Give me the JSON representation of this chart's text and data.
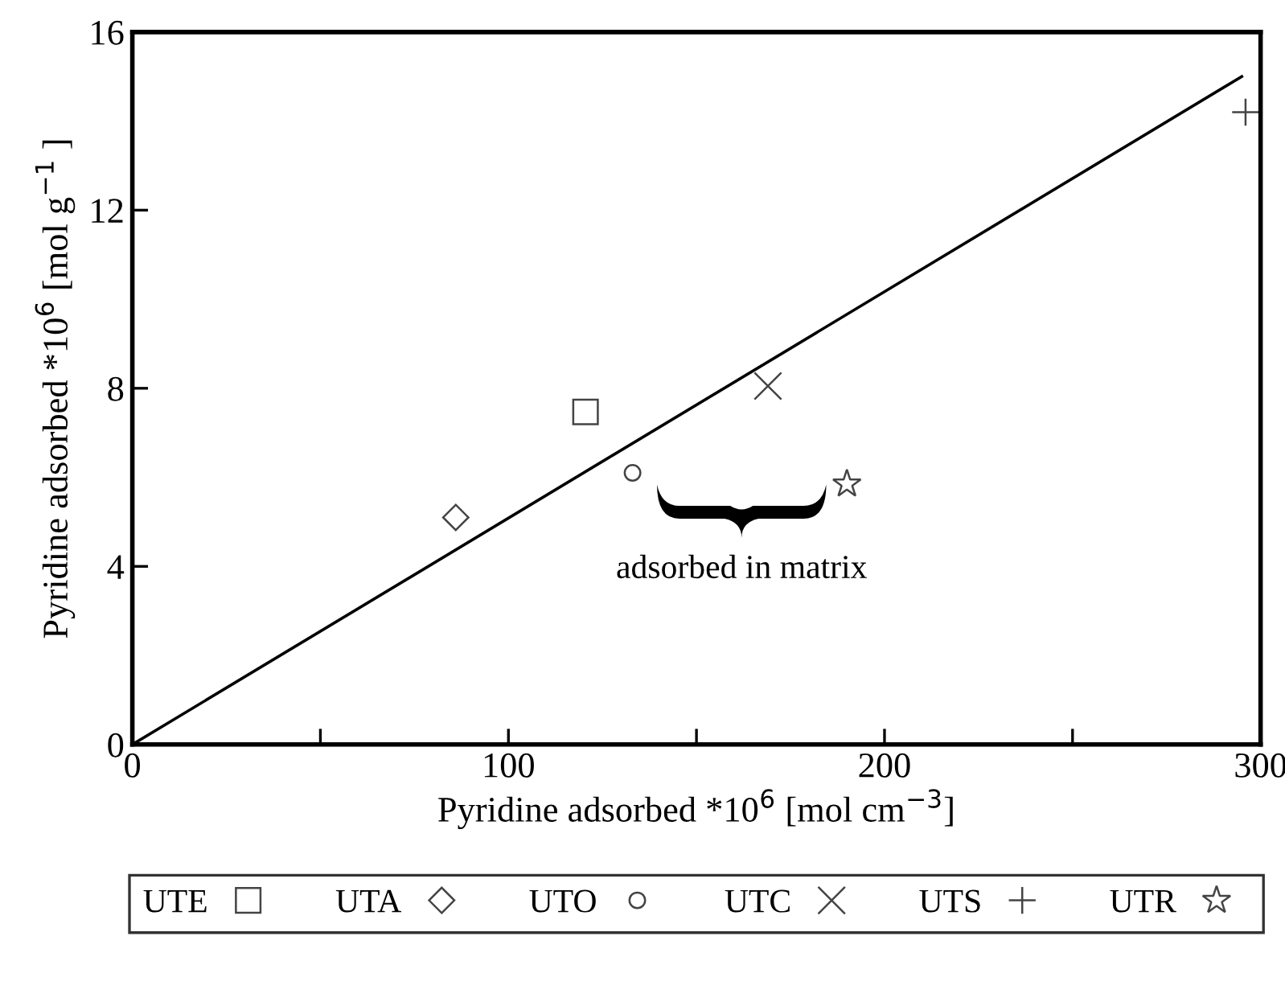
{
  "chart_data": {
    "type": "scatter",
    "xlabel": "Pyridine adsorbed *10$^{6}$ [mol cm$^{−3}$]",
    "ylabel": "Pyridine adsorbed *10$^{6}$ [mol g$^{−1}$ ]",
    "xlim": [
      0,
      300
    ],
    "ylim": [
      0,
      16
    ],
    "xticks": [
      0,
      {
        "value": 50,
        "label": null
      },
      100,
      {
        "value": 150,
        "label": null
      },
      200,
      {
        "value": 250,
        "label": null
      },
      300
    ],
    "yticks": [
      0,
      4,
      8,
      12,
      16
    ],
    "grid": false,
    "legend": "bottom",
    "annotations": [
      "adsorbed in matrix"
    ],
    "series": [
      {
        "name": "UTE",
        "marker": "square",
        "color": "#444444",
        "x": [
          120.5
        ],
        "values": [
          7.47
        ]
      },
      {
        "name": "UTA",
        "marker": "diamond",
        "color": "#444444",
        "x": [
          86
        ],
        "values": [
          5.1
        ]
      },
      {
        "name": "UTO",
        "marker": "circle",
        "color": "#444444",
        "x": [
          133
        ],
        "values": [
          6.1
        ]
      },
      {
        "name": "UTC",
        "marker": "cross",
        "color": "#444444",
        "x": [
          169
        ],
        "values": [
          8.05
        ]
      },
      {
        "name": "UTS",
        "marker": "plus",
        "color": "#444444",
        "x": [
          296
        ],
        "values": [
          14.2
        ]
      },
      {
        "name": "UTR",
        "marker": "star",
        "color": "#444444",
        "x": [
          190
        ],
        "values": [
          5.85
        ]
      },
      {
        "type": "line",
        "color": "#000000",
        "x": [
          0,
          295
        ],
        "values": [
          0,
          15
        ]
      }
    ]
  }
}
